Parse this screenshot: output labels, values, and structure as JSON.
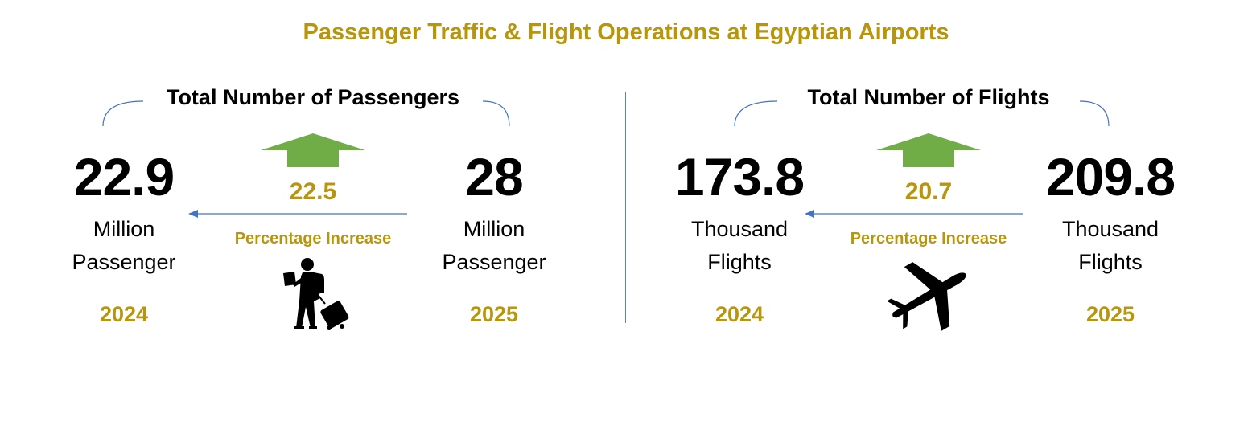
{
  "title": "Passenger Traffic & Flight Operations at Egyptian Airports",
  "colors": {
    "gold": "#b8960c",
    "arrow_green": "#70ad47",
    "line_blue": "#4472c4",
    "text": "#000000"
  },
  "passengers": {
    "section_title": "Total Number of Passengers",
    "value_2024": "22.9",
    "unit_2024_line1": "Million",
    "unit_2024_line2": "Passenger",
    "year_2024": "2024",
    "value_2025": "28",
    "unit_2025_line1": "Million",
    "unit_2025_line2": "Passenger",
    "year_2025": "2025",
    "increase_value": "22.5",
    "increase_label": "Percentage Increase",
    "icon": "traveler-with-luggage-icon"
  },
  "flights": {
    "section_title": "Total Number of Flights",
    "value_2024": "173.8",
    "unit_2024_line1": "Thousand",
    "unit_2024_line2": "Flights",
    "year_2024": "2024",
    "value_2025": "209.8",
    "unit_2025_line1": "Thousand",
    "unit_2025_line2": "Flights",
    "year_2025": "2025",
    "increase_value": "20.7",
    "increase_label": "Percentage Increase",
    "icon": "airplane-icon"
  }
}
